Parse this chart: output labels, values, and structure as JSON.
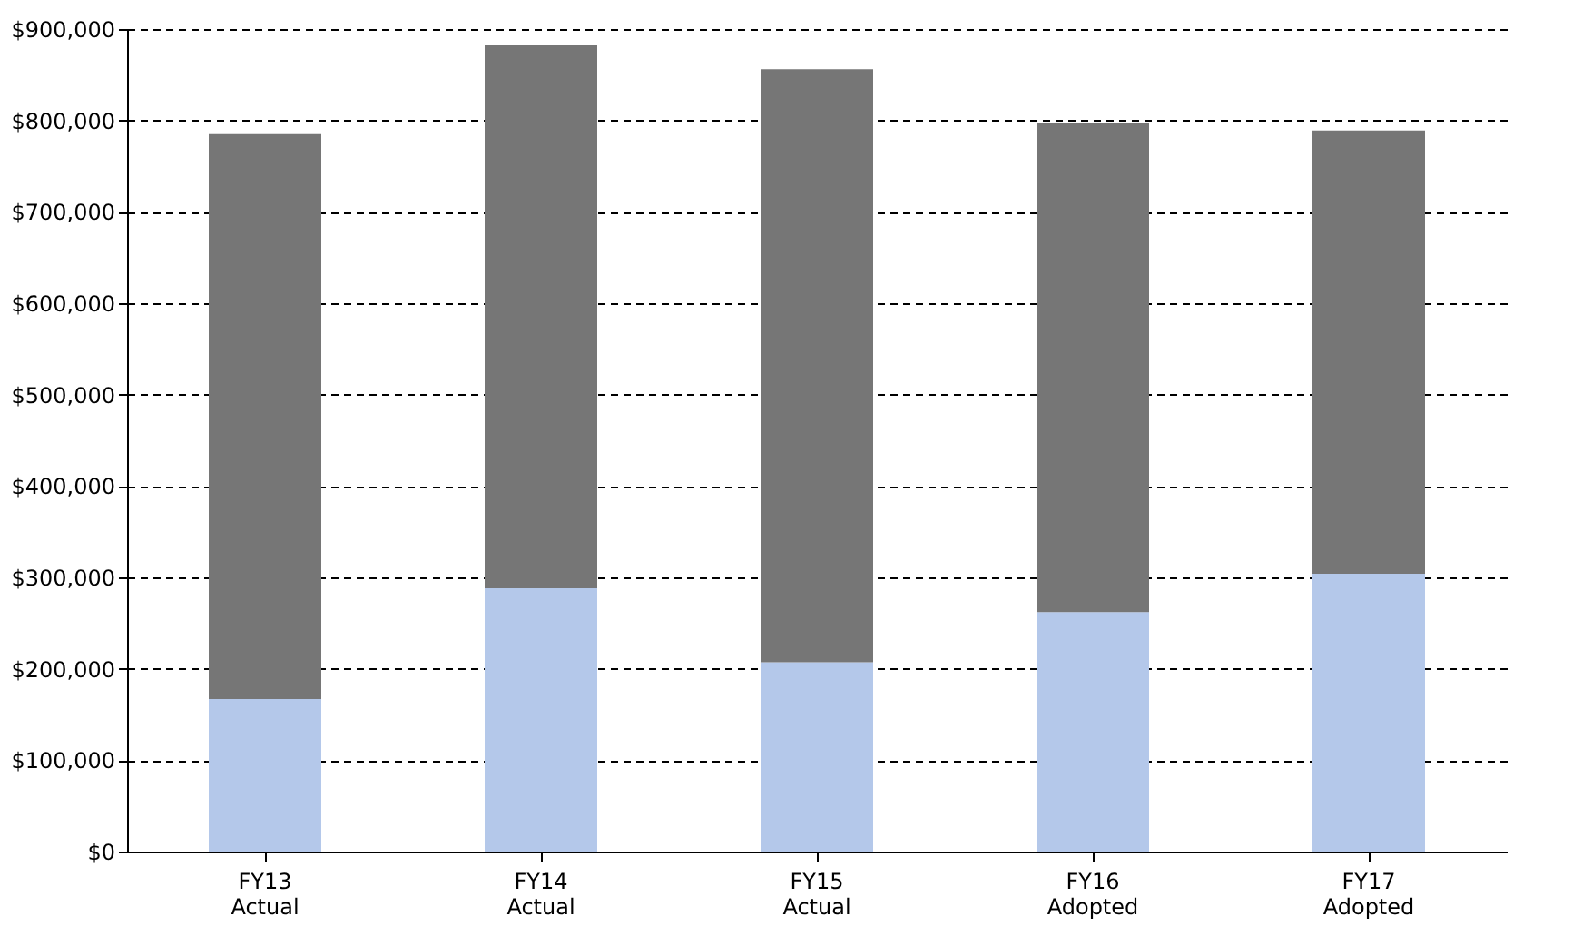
{
  "chart_data": {
    "type": "bar",
    "stacked": true,
    "categories": [
      "FY13 Actual",
      "FY14 Actual",
      "FY15 Actual",
      "FY16 Adopted",
      "FY17 Adopted"
    ],
    "series": [
      {
        "color": "#b4c8ea",
        "values": [
          167000,
          288000,
          207000,
          262000,
          304000
        ]
      },
      {
        "color": "#767676",
        "values": [
          618000,
          594000,
          649000,
          535000,
          485000
        ]
      }
    ],
    "ylim": [
      0,
      900000
    ],
    "yticks": [
      {
        "value": 0,
        "label": "$0"
      },
      {
        "value": 100000,
        "label": "$100,000"
      },
      {
        "value": 200000,
        "label": "$200,000"
      },
      {
        "value": 300000,
        "label": "$300,000"
      },
      {
        "value": 400000,
        "label": "$400,000"
      },
      {
        "value": 500000,
        "label": "$500,000"
      },
      {
        "value": 600000,
        "label": "$600,000"
      },
      {
        "value": 700000,
        "label": "$700,000"
      },
      {
        "value": 800000,
        "label": "$800,000"
      },
      {
        "value": 900000,
        "label": "$900,000"
      }
    ],
    "grid": "y",
    "legend": false
  }
}
